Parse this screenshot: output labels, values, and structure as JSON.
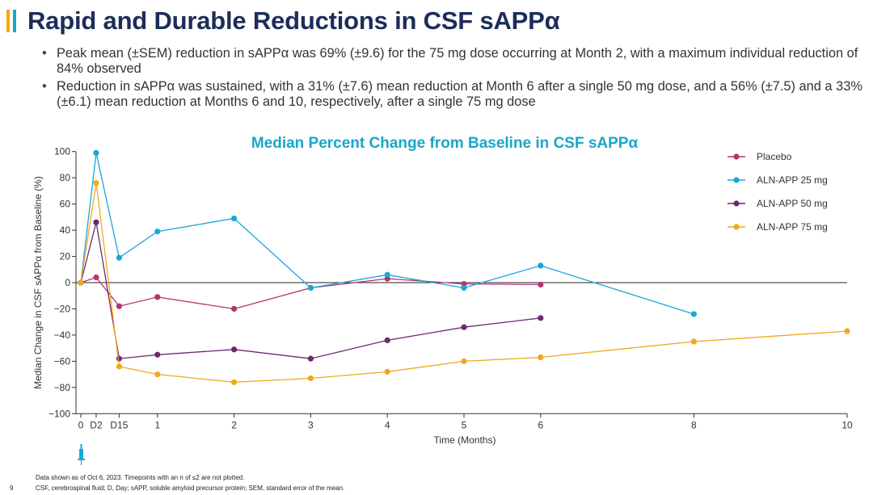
{
  "header": {
    "title": "Rapid and Durable Reductions in CSF sAPPα",
    "accent_colors": [
      "#f2a900",
      "#1aa6c9",
      "#c8398a"
    ]
  },
  "bullets": [
    "Peak mean (±SEM) reduction in sAPPα was 69% (±9.6) for the 75 mg dose occurring at Month 2, with a maximum individual reduction of 84% observed",
    "Reduction in sAPPα was sustained, with a 31% (±7.6) mean reduction at Month 6 after a single 50 mg dose, and a 56% (±7.5) and a 33% (±6.1) mean reduction at Months 6 and 10, respectively, after a single 75 mg dose"
  ],
  "chart_data": {
    "type": "line",
    "title": "Median Percent Change from Baseline in CSF sAPPα",
    "title_color": "#1aa6c9",
    "xlabel": "Time (Months)",
    "ylabel": "Median Change in CSF sAPPα from Baseline (%)",
    "ylim": [
      -100,
      100
    ],
    "yticks": [
      -100,
      -80,
      -60,
      -40,
      -20,
      0,
      20,
      40,
      60,
      80,
      100
    ],
    "xticks": [
      {
        "label": "0",
        "x": 0
      },
      {
        "label": "D2",
        "x": 0.2
      },
      {
        "label": "D15",
        "x": 0.5
      },
      {
        "label": "1",
        "x": 1
      },
      {
        "label": "2",
        "x": 2
      },
      {
        "label": "3",
        "x": 3
      },
      {
        "label": "4",
        "x": 4
      },
      {
        "label": "5",
        "x": 5
      },
      {
        "label": "6",
        "x": 6
      },
      {
        "label": "8",
        "x": 8
      },
      {
        "label": "10",
        "x": 10
      }
    ],
    "legend_position": "top-right",
    "series": [
      {
        "name": "Placebo",
        "color": "#b5346e",
        "points": [
          [
            0,
            0
          ],
          [
            0.2,
            4
          ],
          [
            0.5,
            -18
          ],
          [
            1,
            -11
          ],
          [
            2,
            -20
          ],
          [
            3,
            -4
          ],
          [
            4,
            3
          ],
          [
            5,
            -1
          ],
          [
            6,
            -1.5
          ]
        ]
      },
      {
        "name": "ALN-APP 25 mg",
        "color": "#1aa6d9",
        "points": [
          [
            0,
            0
          ],
          [
            0.2,
            99
          ],
          [
            0.5,
            19
          ],
          [
            1,
            39
          ],
          [
            2,
            49
          ],
          [
            3,
            -4
          ],
          [
            4,
            6
          ],
          [
            5,
            -4
          ],
          [
            6,
            13
          ],
          [
            8,
            -24
          ]
        ]
      },
      {
        "name": "ALN-APP 50 mg",
        "color": "#6b2a6e",
        "points": [
          [
            0,
            0
          ],
          [
            0.2,
            46
          ],
          [
            0.5,
            -58
          ],
          [
            1,
            -55
          ],
          [
            2,
            -51
          ],
          [
            3,
            -58
          ],
          [
            4,
            -44
          ],
          [
            5,
            -34
          ],
          [
            6,
            -27
          ]
        ]
      },
      {
        "name": "ALN-APP 75 mg",
        "color": "#f0a81c",
        "points": [
          [
            0,
            0
          ],
          [
            0.2,
            76
          ],
          [
            0.5,
            -64
          ],
          [
            1,
            -70
          ],
          [
            2,
            -76
          ],
          [
            3,
            -73
          ],
          [
            4,
            -68
          ],
          [
            5,
            -60
          ],
          [
            6,
            -57
          ],
          [
            8,
            -45
          ],
          [
            10,
            -37
          ]
        ]
      }
    ]
  },
  "footnotes": {
    "line1": "Data shown as of Oct 6, 2023. Timepoints with an n of ≤2 are not plotted.",
    "line2": "CSF, cerebrospinal fluid; D, Day; sAPP, soluble amyloid precursor protein; SEM, standard error of the mean.",
    "page_number": "9"
  },
  "icons": {
    "dose_marker": "syringe-icon"
  }
}
